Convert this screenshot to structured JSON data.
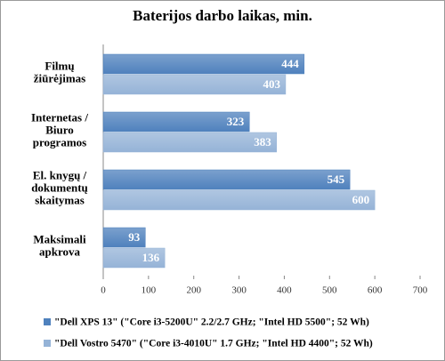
{
  "chart_data": {
    "type": "bar",
    "orientation": "horizontal",
    "title": "Baterijos darbo laikas, min.",
    "categories": [
      "Filmų\nžiūrėjimas",
      "Internetas /\nBiuro\nprogramos",
      "El. knygų /\ndokumentų\nskaitymas",
      "Maksimali\napkrova"
    ],
    "series": [
      {
        "name": "\"Dell XPS 13\" (\"Core i3-5200U\" 2.2/2.7 GHz; \"Intel HD 5500\"; 52 Wh)",
        "color": "#4f81bd",
        "values": [
          444,
          323,
          545,
          93
        ]
      },
      {
        "name": "\"Dell Vostro 5470\" (\"Core i3-4010U\" 1.7 GHz; \"Intel HD 4400\"; 52 Wh)",
        "color": "#95b3d7",
        "values": [
          403,
          383,
          600,
          136
        ]
      }
    ],
    "xlim": [
      0,
      700
    ],
    "xticks": [
      0,
      100,
      200,
      300,
      400,
      500,
      600,
      700
    ],
    "grid": false
  }
}
